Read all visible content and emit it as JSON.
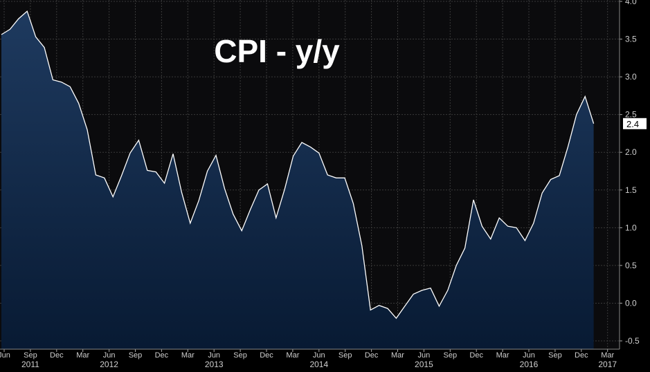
{
  "chart_data": {
    "type": "area",
    "title": "CPI - y/y",
    "ylim": [
      -0.5,
      4.0
    ],
    "y_ticks": [
      "-0.5",
      "0.0",
      "0.5",
      "1.0",
      "1.5",
      "2.0",
      "2.5",
      "3.0",
      "3.5",
      "4.0"
    ],
    "y_tick_values": [
      -0.5,
      0.0,
      0.5,
      1.0,
      1.5,
      2.0,
      2.5,
      3.0,
      3.5,
      4.0
    ],
    "last_value_label": "2.4",
    "months": [
      "Jun",
      "Sep",
      "Dec",
      "Mar",
      "Jun",
      "Sep",
      "Dec",
      "Mar",
      "Jun",
      "Sep",
      "Dec",
      "Mar",
      "Jun",
      "Sep",
      "Dec",
      "Mar",
      "Jun",
      "Sep",
      "Dec",
      "Mar",
      "Jun",
      "Sep",
      "Dec",
      "Mar"
    ],
    "years": [
      {
        "label": "2011",
        "index": 1
      },
      {
        "label": "2012",
        "index": 4
      },
      {
        "label": "2013",
        "index": 8
      },
      {
        "label": "2014",
        "index": 12
      },
      {
        "label": "2015",
        "index": 16
      },
      {
        "label": "2016",
        "index": 20
      },
      {
        "label": "2017",
        "index": 23
      }
    ],
    "x": [
      "2011-06",
      "2011-07",
      "2011-08",
      "2011-09",
      "2011-10",
      "2011-11",
      "2011-12",
      "2012-01",
      "2012-02",
      "2012-03",
      "2012-04",
      "2012-05",
      "2012-06",
      "2012-07",
      "2012-08",
      "2012-09",
      "2012-10",
      "2012-11",
      "2012-12",
      "2013-01",
      "2013-02",
      "2013-03",
      "2013-04",
      "2013-05",
      "2013-06",
      "2013-07",
      "2013-08",
      "2013-09",
      "2013-10",
      "2013-11",
      "2013-12",
      "2014-01",
      "2014-02",
      "2014-03",
      "2014-04",
      "2014-05",
      "2014-06",
      "2014-07",
      "2014-08",
      "2014-09",
      "2014-10",
      "2014-11",
      "2014-12",
      "2015-01",
      "2015-02",
      "2015-03",
      "2015-04",
      "2015-05",
      "2015-06",
      "2015-07",
      "2015-08",
      "2015-09",
      "2015-10",
      "2015-11",
      "2015-12",
      "2016-01",
      "2016-02",
      "2016-03",
      "2016-04",
      "2016-05",
      "2016-06",
      "2016-07",
      "2016-08",
      "2016-09",
      "2016-10",
      "2016-11",
      "2016-12",
      "2017-01",
      "2017-02",
      "2017-03"
    ],
    "values": [
      3.56,
      3.63,
      3.77,
      3.87,
      3.53,
      3.39,
      2.96,
      2.93,
      2.87,
      2.65,
      2.3,
      1.7,
      1.66,
      1.41,
      1.69,
      1.99,
      2.16,
      1.76,
      1.74,
      1.59,
      1.98,
      1.47,
      1.06,
      1.36,
      1.75,
      1.96,
      1.52,
      1.18,
      0.96,
      1.24,
      1.5,
      1.58,
      1.13,
      1.51,
      1.95,
      2.13,
      2.07,
      1.99,
      1.7,
      1.66,
      1.66,
      1.32,
      0.76,
      -0.09,
      -0.03,
      -0.07,
      -0.2,
      -0.04,
      0.12,
      0.17,
      0.2,
      -0.04,
      0.17,
      0.5,
      0.73,
      1.37,
      1.02,
      0.85,
      1.13,
      1.02,
      1.0,
      0.83,
      1.06,
      1.46,
      1.64,
      1.69,
      2.07,
      2.5,
      2.74,
      2.38
    ],
    "colors": {
      "background": "#000000",
      "plot_background": "#0b0b0d",
      "area_top": "#1e3a5f",
      "area_bottom": "#081a33",
      "line": "#ffffff",
      "grid": "#3a3a3a",
      "axis_text": "#cfcfcf"
    },
    "grid": true
  }
}
